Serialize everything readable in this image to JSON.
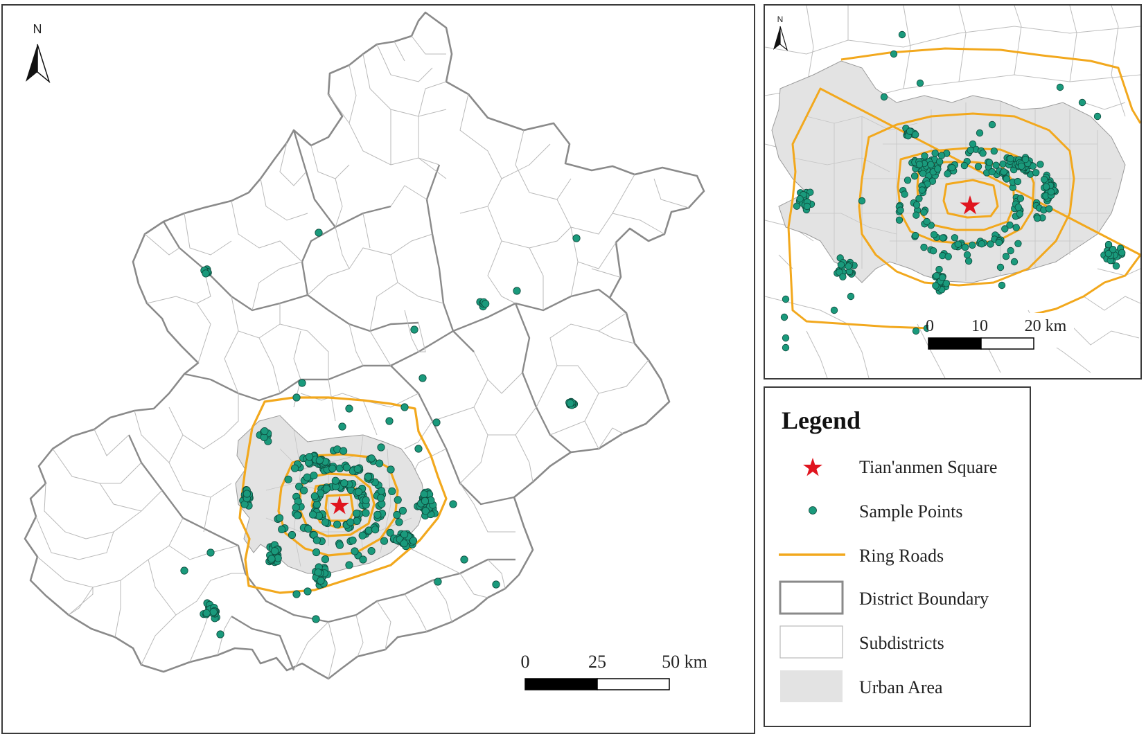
{
  "main_map": {
    "north_label": "N",
    "scale": {
      "labels": [
        "0",
        "25",
        "50 km"
      ]
    }
  },
  "inset_map": {
    "north_label": "N",
    "scale": {
      "labels": [
        "0",
        "10",
        "20 km"
      ]
    }
  },
  "legend": {
    "title": "Legend",
    "items": [
      {
        "label": "Tian'anmen Square",
        "symbol": "red-star-icon"
      },
      {
        "label": "Sample Points",
        "symbol": "green-dot-icon"
      },
      {
        "label": "Ring Roads",
        "symbol": "orange-line-icon"
      },
      {
        "label": "District Boundary",
        "symbol": "thick-gray-rect-icon"
      },
      {
        "label": "Subdistricts",
        "symbol": "thin-gray-rect-icon"
      },
      {
        "label": "Urban Area",
        "symbol": "gray-fill-rect-icon"
      }
    ]
  },
  "colors": {
    "sample_point": "#1a9a7c",
    "sample_point_stroke": "#0d4a3c",
    "ring_road": "#f2a81d",
    "star": "#e0141e",
    "district_boundary": "#8a8a8a",
    "subdistrict": "#b9b9b9",
    "urban_area": "#e3e3e3"
  }
}
